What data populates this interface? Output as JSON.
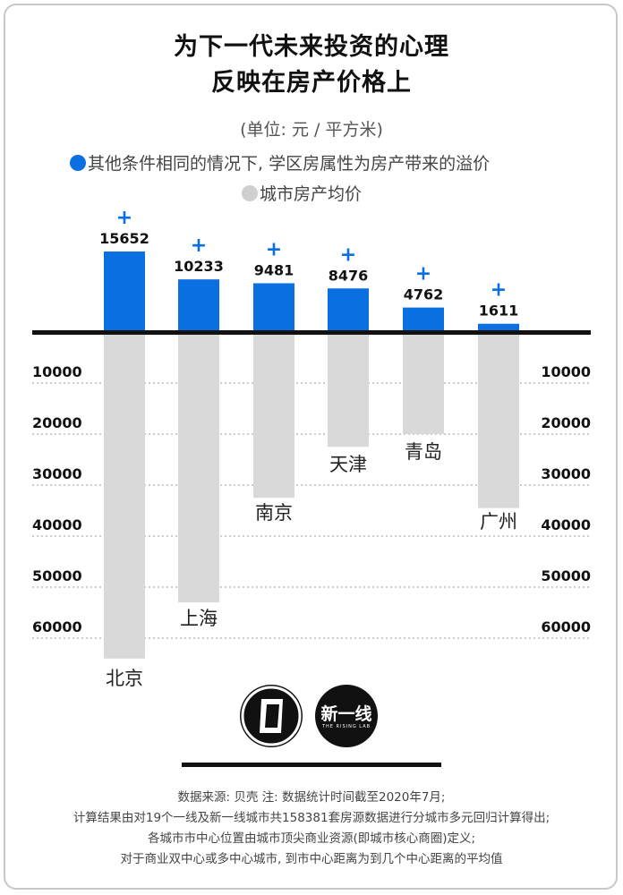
{
  "title_line1": "为下一代未来投资的心理",
  "title_line2": "反映在房产价格上",
  "unit": "(单位: 元 / 平方米)",
  "legend": {
    "premium_label": "其他条件相同的情况下, 学区房属性为房产带来的溢价",
    "avg_label": "城市房产均价"
  },
  "colors": {
    "premium": "#0a6fe0",
    "avg": "#d9d9d9",
    "axis": "#111111"
  },
  "chart_data": {
    "type": "bar",
    "categories": [
      "北京",
      "上海",
      "南京",
      "天津",
      "青岛",
      "广州"
    ],
    "series": [
      {
        "name": "其他条件相同的情况下, 学区房属性为房产带来的溢价",
        "values": [
          15652,
          10233,
          9481,
          8476,
          4762,
          1611
        ],
        "direction": "up"
      },
      {
        "name": "城市房产均价",
        "values": [
          64000,
          53000,
          32500,
          22500,
          20000,
          34500
        ],
        "direction": "down"
      }
    ],
    "value_labels": [
      "15652",
      "10233",
      "9481",
      "8476",
      "4762",
      "1611"
    ],
    "value_prefix_symbol": "+",
    "yticks": [
      "10000",
      "20000",
      "30000",
      "40000",
      "50000",
      "60000"
    ],
    "ylim_down": [
      0,
      60000
    ]
  },
  "logos": {
    "logo2_text": "新一线",
    "logo2_sub": "THE RISING LAB"
  },
  "footer": [
    "数据来源: 贝壳  注: 数据统计时间截至2020年7月;",
    "计算结果由对19个一线及新一线城市共158381套房源数据进行分城市多元回归计算得出;",
    "各城市市中心位置由城市顶尖商业资源(即城市核心商圈)定义;",
    "对于商业双中心或多中心城市, 到市中心距离为到几个中心距离的平均值"
  ]
}
